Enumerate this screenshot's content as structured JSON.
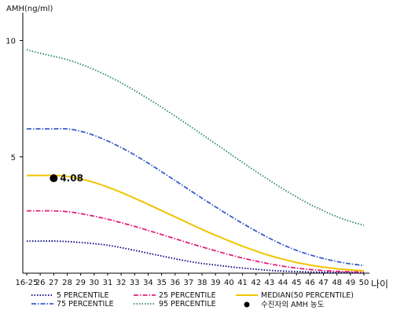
{
  "chart_data": {
    "type": "line",
    "ylabel": "AMH(ng/ml)",
    "xlabel": "나이",
    "x": [
      "16-25",
      "26",
      "27",
      "28",
      "29",
      "30",
      "31",
      "32",
      "33",
      "34",
      "35",
      "36",
      "37",
      "38",
      "39",
      "40",
      "41",
      "42",
      "43",
      "44",
      "45",
      "46",
      "47",
      "48",
      "49",
      "50"
    ],
    "yticks": [
      5,
      10
    ],
    "ylim": [
      0,
      11.2
    ],
    "grid": false,
    "legend_position": "bottom",
    "series": [
      {
        "name": "5 PERCENTILE",
        "color": "#000080",
        "dash": "dot",
        "values": [
          1.38,
          1.38,
          1.38,
          1.36,
          1.32,
          1.27,
          1.2,
          1.1,
          0.98,
          0.86,
          0.74,
          0.62,
          0.51,
          0.42,
          0.35,
          0.28,
          0.22,
          0.17,
          0.12,
          0.09,
          0.07,
          0.05,
          0.04,
          0.03,
          0.03,
          0.03
        ]
      },
      {
        "name": "25 PERCENTILE",
        "color": "#e0207a",
        "dash": "dashdot",
        "values": [
          2.68,
          2.68,
          2.68,
          2.64,
          2.56,
          2.45,
          2.32,
          2.17,
          2.01,
          1.84,
          1.66,
          1.48,
          1.3,
          1.13,
          0.96,
          0.8,
          0.65,
          0.52,
          0.4,
          0.3,
          0.22,
          0.16,
          0.11,
          0.08,
          0.06,
          0.05
        ]
      },
      {
        "name": "MEDIAN(50 PERCENTILE)",
        "color": "#f0c400",
        "dash": "solid",
        "values": [
          4.2,
          4.2,
          4.2,
          4.16,
          4.05,
          3.9,
          3.7,
          3.47,
          3.22,
          2.96,
          2.69,
          2.42,
          2.15,
          1.88,
          1.63,
          1.39,
          1.16,
          0.95,
          0.76,
          0.6,
          0.46,
          0.35,
          0.26,
          0.19,
          0.14,
          0.1
        ]
      },
      {
        "name": "75 PERCENTILE",
        "color": "#3a5fcd",
        "dash": "dashdot",
        "values": [
          6.2,
          6.2,
          6.2,
          6.2,
          6.1,
          5.92,
          5.68,
          5.4,
          5.08,
          4.73,
          4.36,
          3.98,
          3.6,
          3.22,
          2.85,
          2.49,
          2.14,
          1.81,
          1.5,
          1.22,
          0.98,
          0.79,
          0.63,
          0.5,
          0.4,
          0.33
        ]
      },
      {
        "name": "95 PERCENTILE",
        "color": "#2e8b57",
        "dash": "dot",
        "values": [
          9.6,
          9.45,
          9.32,
          9.18,
          8.98,
          8.75,
          8.48,
          8.18,
          7.85,
          7.5,
          7.13,
          6.75,
          6.36,
          5.96,
          5.56,
          5.16,
          4.76,
          4.37,
          3.99,
          3.62,
          3.28,
          2.96,
          2.68,
          2.43,
          2.22,
          2.06
        ]
      }
    ],
    "patient": {
      "name": "수진자의 AMH 농도",
      "x": "27",
      "value": 4.08,
      "label": "4.08",
      "color": "#000000"
    }
  }
}
